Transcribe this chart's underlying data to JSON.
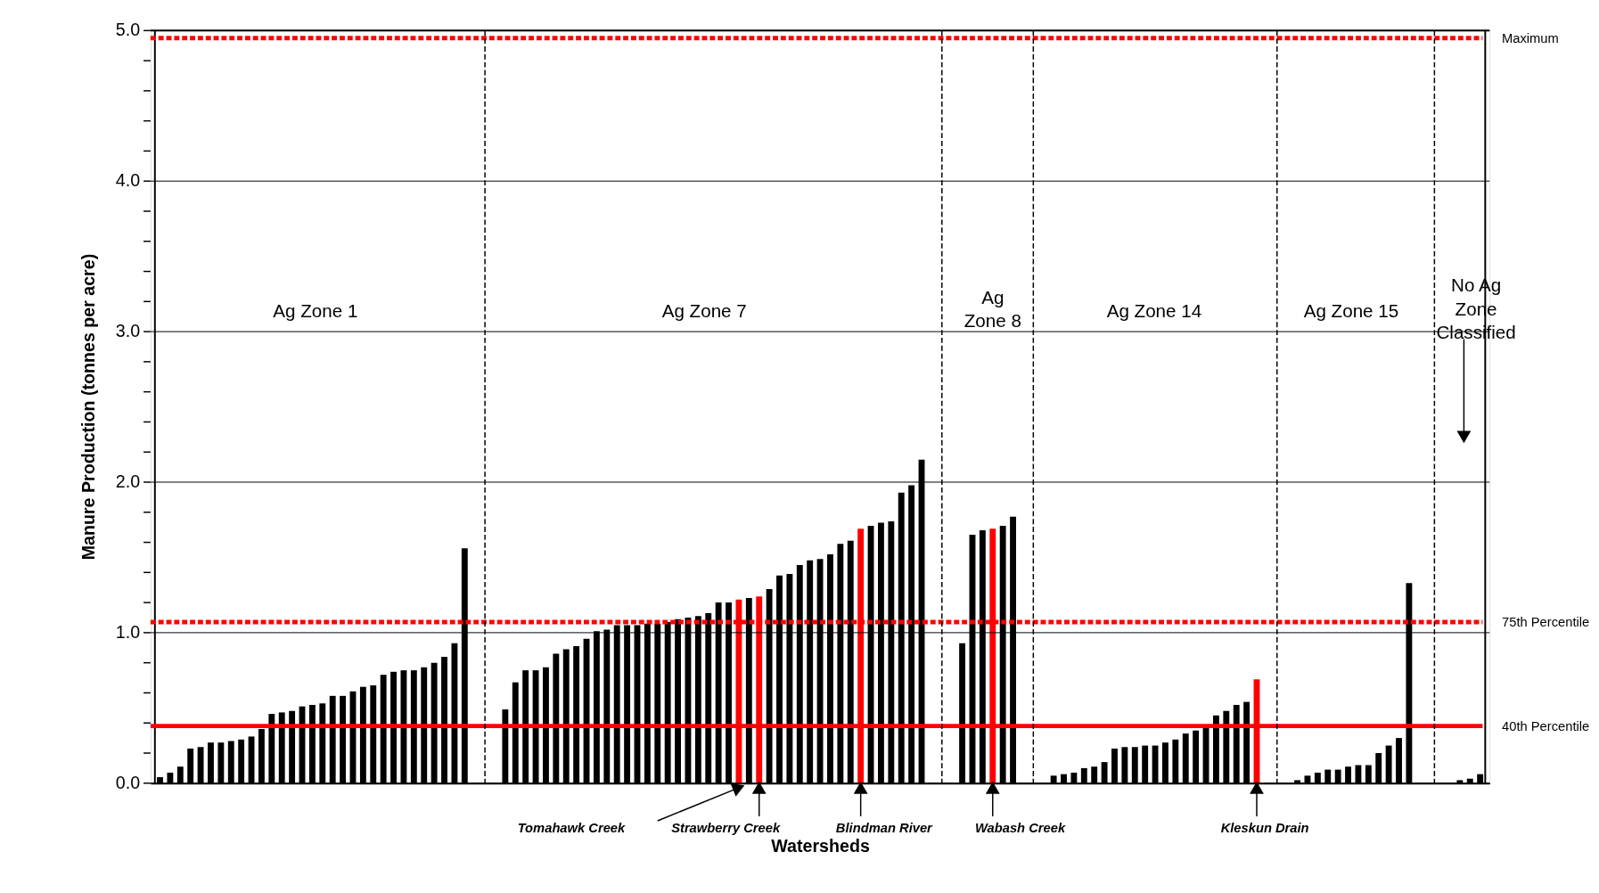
{
  "chart_data": {
    "type": "bar",
    "xlabel": "Watersheds",
    "ylabel": "Manure Production (tonnes per acre)",
    "categories": [
      null,
      null,
      null,
      null,
      null,
      null,
      null,
      null,
      null,
      null,
      null,
      null,
      null,
      null,
      null,
      null,
      null,
      null,
      null,
      null,
      null,
      null,
      null,
      null,
      null,
      null,
      null,
      null,
      null,
      null,
      null,
      null,
      null,
      null,
      null,
      null,
      null,
      null,
      null,
      null,
      null,
      null,
      null,
      null,
      null,
      null,
      null,
      null,
      null,
      null,
      null,
      null,
      null,
      null,
      null,
      null,
      null,
      null,
      null,
      null,
      null,
      null,
      null,
      null,
      null,
      null,
      null,
      null,
      null,
      null,
      null,
      null,
      null,
      null,
      null,
      null,
      null,
      null,
      null,
      null,
      null,
      null,
      null,
      null,
      null,
      null,
      null,
      null,
      null,
      null,
      null,
      null,
      null,
      null,
      null,
      null,
      null,
      null,
      null,
      null,
      null,
      null,
      null,
      null,
      null,
      null,
      null,
      null,
      null,
      null,
      null,
      null,
      null,
      null,
      null,
      null,
      null,
      null,
      null,
      null,
      null,
      null,
      null,
      null,
      null,
      null,
      null,
      null,
      null,
      null,
      null
    ],
    "values": [
      0.04,
      0.07,
      0.11,
      0.23,
      0.24,
      0.27,
      0.27,
      0.28,
      0.29,
      0.31,
      0.36,
      0.46,
      0.47,
      0.48,
      0.51,
      0.52,
      0.53,
      0.58,
      0.58,
      0.61,
      0.64,
      0.65,
      0.72,
      0.74,
      0.75,
      0.75,
      0.77,
      0.8,
      0.84,
      0.93,
      1.56,
      null,
      null,
      null,
      0.49,
      0.67,
      0.75,
      0.75,
      0.77,
      0.86,
      0.89,
      0.91,
      0.96,
      1.01,
      1.02,
      1.05,
      1.05,
      1.05,
      1.06,
      1.06,
      1.07,
      1.09,
      1.1,
      1.11,
      1.13,
      1.2,
      1.2,
      1.22,
      1.23,
      1.24,
      1.29,
      1.38,
      1.39,
      1.45,
      1.48,
      1.49,
      1.52,
      1.59,
      1.61,
      1.69,
      1.71,
      1.73,
      1.74,
      1.93,
      1.98,
      2.15,
      null,
      null,
      null,
      0.93,
      1.65,
      1.68,
      1.69,
      1.71,
      1.77,
      null,
      null,
      null,
      0.05,
      0.06,
      0.07,
      0.1,
      0.11,
      0.14,
      0.23,
      0.24,
      0.24,
      0.25,
      0.25,
      0.27,
      0.29,
      0.33,
      0.35,
      0.38,
      0.45,
      0.48,
      0.52,
      0.54,
      0.69,
      null,
      null,
      null,
      0.02,
      0.05,
      0.07,
      0.09,
      0.09,
      0.11,
      0.12,
      0.12,
      0.2,
      0.25,
      0.3,
      1.33,
      null,
      null,
      null,
      null,
      0.02,
      0.03,
      0.06
    ],
    "colors": [
      "#000000",
      "#000000",
      "#000000",
      "#000000",
      "#000000",
      "#000000",
      "#000000",
      "#000000",
      "#000000",
      "#000000",
      "#000000",
      "#000000",
      "#000000",
      "#000000",
      "#000000",
      "#000000",
      "#000000",
      "#000000",
      "#000000",
      "#000000",
      "#000000",
      "#000000",
      "#000000",
      "#000000",
      "#000000",
      "#000000",
      "#000000",
      "#000000",
      "#000000",
      "#000000",
      "#000000",
      "#000000",
      "#000000",
      "#000000",
      "#000000",
      "#000000",
      "#000000",
      "#000000",
      "#000000",
      "#000000",
      "#000000",
      "#000000",
      "#000000",
      "#000000",
      "#000000",
      "#000000",
      "#000000",
      "#000000",
      "#000000",
      "#000000",
      "#000000",
      "#000000",
      "#000000",
      "#000000",
      "#000000",
      "#000000",
      "#000000",
      "#ff0000",
      "#000000",
      "#ff0000",
      "#000000",
      "#000000",
      "#000000",
      "#000000",
      "#000000",
      "#000000",
      "#000000",
      "#000000",
      "#000000",
      "#ff0000",
      "#000000",
      "#000000",
      "#000000",
      "#000000",
      "#000000",
      "#000000",
      "#000000",
      "#000000",
      "#000000",
      "#000000",
      "#000000",
      "#000000",
      "#ff0000",
      "#000000",
      "#000000",
      "#000000",
      "#000000",
      "#000000",
      "#000000",
      "#000000",
      "#000000",
      "#000000",
      "#000000",
      "#000000",
      "#000000",
      "#000000",
      "#000000",
      "#000000",
      "#000000",
      "#000000",
      "#000000",
      "#000000",
      "#000000",
      "#000000",
      "#000000",
      "#000000",
      "#000000",
      "#000000",
      "#ff0000",
      "#000000",
      "#000000",
      "#000000",
      "#000000",
      "#000000",
      "#000000",
      "#000000",
      "#000000",
      "#000000",
      "#000000",
      "#000000",
      "#000000",
      "#000000",
      "#000000",
      "#000000",
      "#000000",
      "#000000",
      "#000000",
      "#000000",
      "#000000",
      "#000000",
      "#000000"
    ],
    "ylim": [
      0,
      5
    ],
    "yticks": [
      {
        "value": 0,
        "label": "0.0"
      },
      {
        "value": 0.2,
        "label": null
      },
      {
        "value": 0.4,
        "label": null
      },
      {
        "value": 0.6,
        "label": null
      },
      {
        "value": 0.8,
        "label": null
      },
      {
        "value": 1,
        "label": "1.0"
      },
      {
        "value": 1.2,
        "label": null
      },
      {
        "value": 1.4,
        "label": null
      },
      {
        "value": 1.6,
        "label": null
      },
      {
        "value": 1.8,
        "label": null
      },
      {
        "value": 2,
        "label": "2.0"
      },
      {
        "value": 2.2,
        "label": null
      },
      {
        "value": 2.4,
        "label": null
      },
      {
        "value": 2.6,
        "label": null
      },
      {
        "value": 2.8,
        "label": null
      },
      {
        "value": 3,
        "label": "3.0"
      },
      {
        "value": 3.2,
        "label": null
      },
      {
        "value": 3.4,
        "label": null
      },
      {
        "value": 3.6,
        "label": null
      },
      {
        "value": 3.8,
        "label": null
      },
      {
        "value": 4,
        "label": "4.0"
      },
      {
        "value": 4.2,
        "label": null
      },
      {
        "value": 4.4,
        "label": null
      },
      {
        "value": 4.6,
        "label": null
      },
      {
        "value": 4.8,
        "label": null
      },
      {
        "value": 5,
        "label": "5.0"
      }
    ],
    "grid": "y",
    "tick_labels": "y",
    "ref_lines": [
      {
        "axis": "y",
        "value": 4.95,
        "label": "Maximum",
        "color": "#ff0000",
        "line_style": "dashed"
      },
      {
        "axis": "y",
        "value": 1.07,
        "label": "75th Percentile",
        "color": "#ff0000",
        "line_style": "dashed"
      },
      {
        "axis": "y",
        "value": 0.38,
        "label": "40th Percentile",
        "color": "#ff0000",
        "line_style": "solid"
      }
    ],
    "annotations": [
      "Ag Zone 1",
      "Ag Zone 7",
      "Ag Zone 8",
      "Ag Zone 14",
      "Ag Zone 15",
      "No Ag Zone Classified",
      "Tomahawk Creek",
      "Strawberry Creek",
      "Blindman River",
      "Wabash Creek",
      "Kleskun Drain"
    ]
  }
}
